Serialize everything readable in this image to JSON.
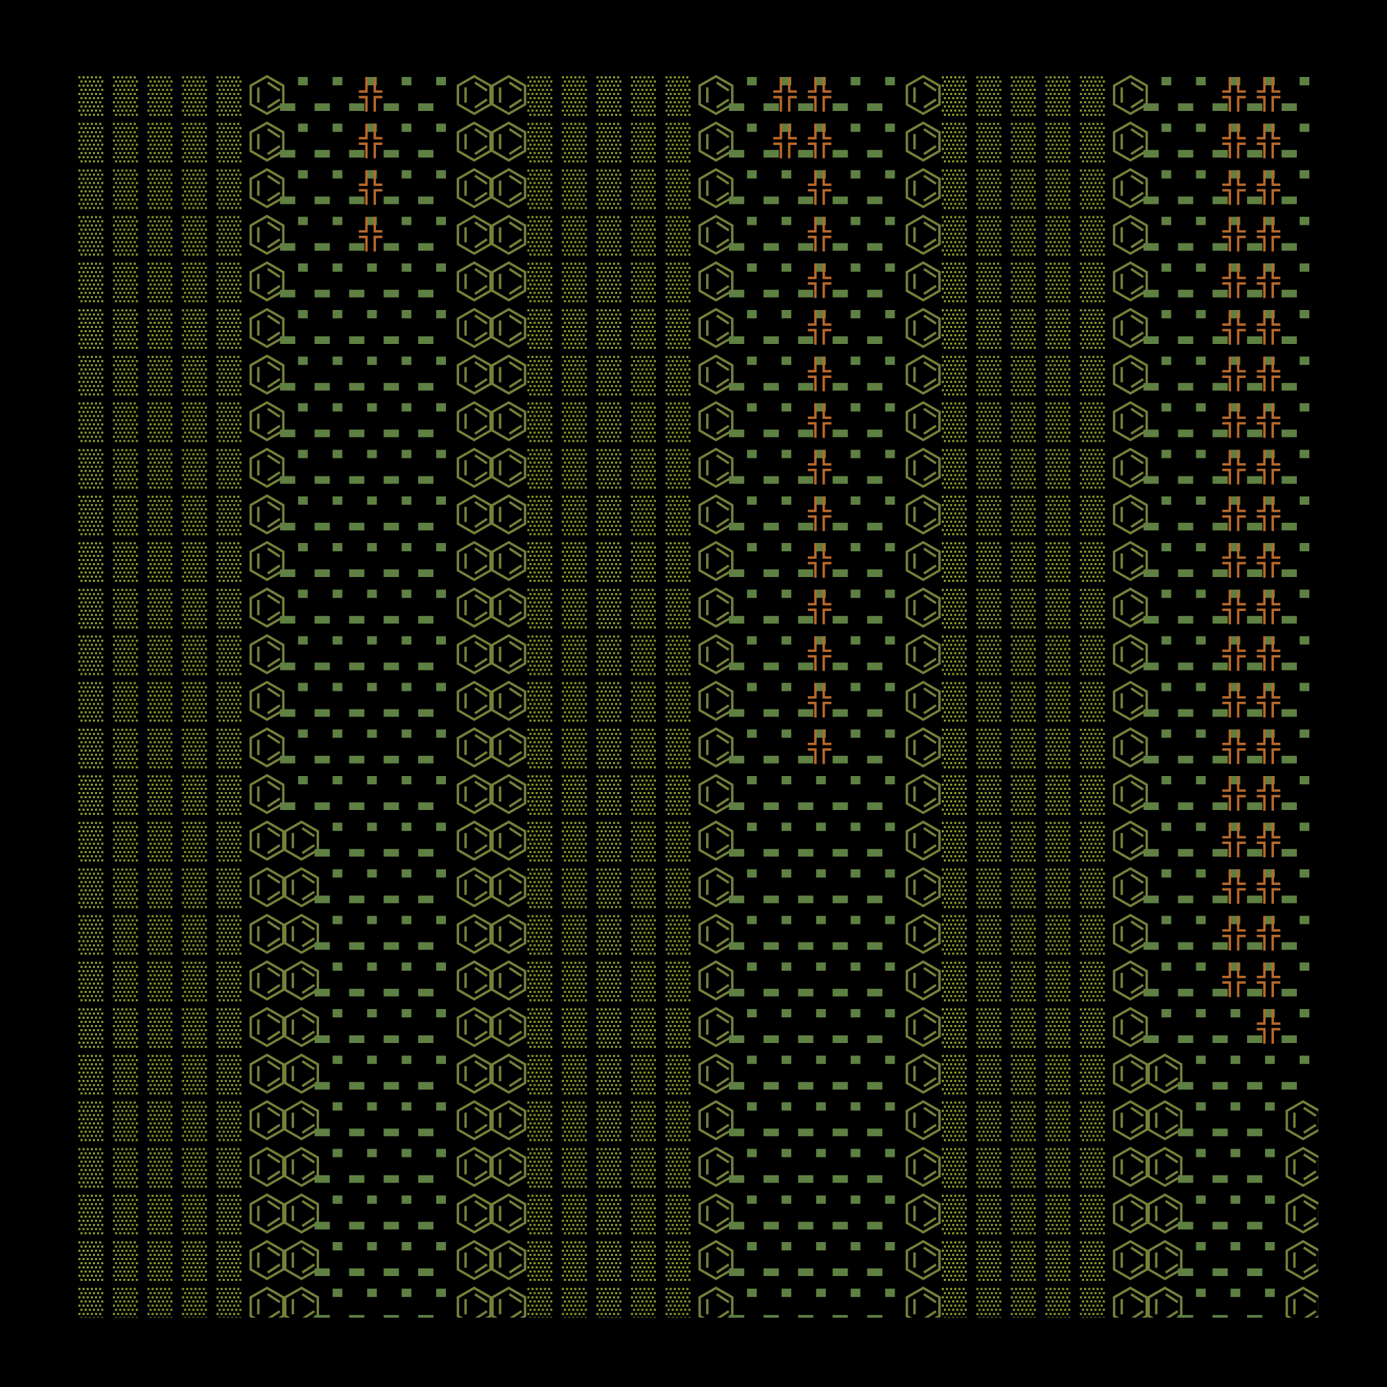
{
  "palette": {
    "background": "#000000",
    "dots": "#8c9a2c",
    "hexagon": "#75803a",
    "squares": "#5f8043",
    "cross": "#b8692a"
  },
  "grid": {
    "columns": [
      "dots",
      "dots",
      "dots",
      "dots",
      "dots",
      "hex",
      "sq",
      "sq",
      "sq",
      "sq",
      "sq",
      "hex",
      "hex",
      "dots",
      "dots",
      "dots",
      "dots",
      "dots",
      "hex",
      "sq",
      "sq",
      "sq",
      "sq",
      "sq",
      "hex",
      "dots",
      "dots",
      "dots",
      "dots",
      "dots",
      "hex",
      "sq",
      "sq",
      "sq",
      "sq",
      "sq"
    ],
    "rows": 27,
    "overrides": [
      {
        "col": 8,
        "from_row": 0,
        "to_row": 3,
        "type": "cross"
      },
      {
        "col": 20,
        "from_row": 0,
        "to_row": 1,
        "type": "cross"
      },
      {
        "col": 21,
        "from_row": 0,
        "to_row": 14,
        "type": "cross"
      },
      {
        "col": 33,
        "from_row": 0,
        "to_row": 19,
        "type": "cross"
      },
      {
        "col": 34,
        "from_row": 0,
        "to_row": 20,
        "type": "cross"
      },
      {
        "col": 6,
        "from_row": 16,
        "to_row": 26,
        "type": "hex"
      },
      {
        "col": 31,
        "from_row": 21,
        "to_row": 26,
        "type": "hex"
      },
      {
        "col": 35,
        "from_row": 22,
        "to_row": 26,
        "type": "hex"
      }
    ]
  }
}
